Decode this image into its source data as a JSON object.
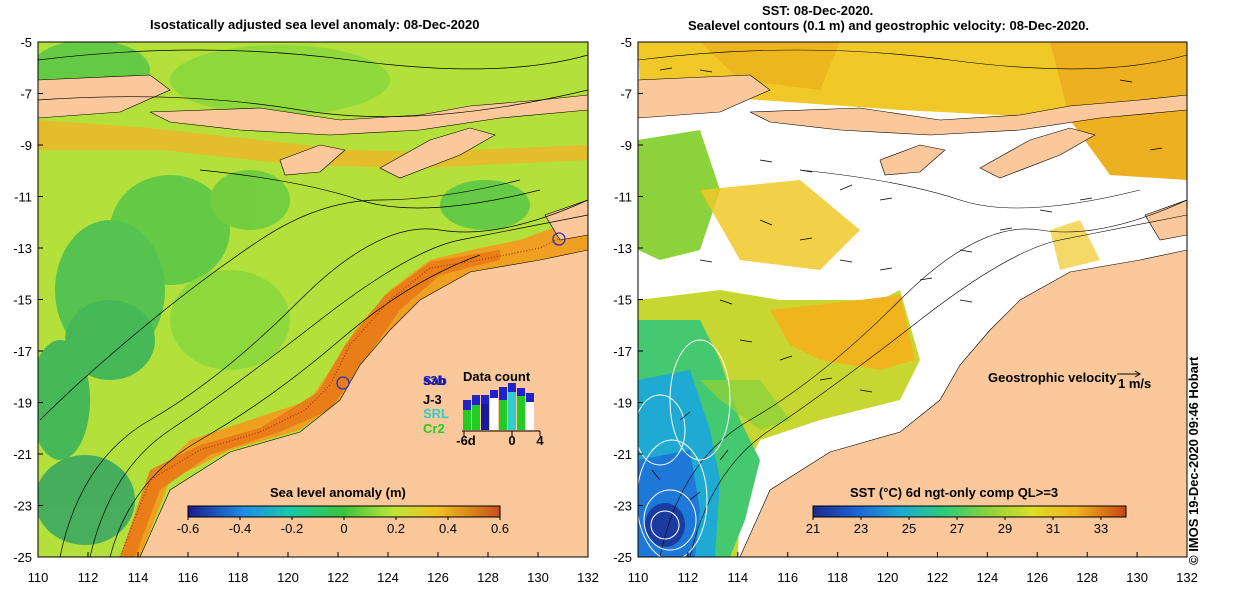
{
  "left_panel": {
    "title": "Isostatically adjusted sea level anomaly: 08-Dec-2020",
    "y_ticks": [
      "-5",
      "-7",
      "-9",
      "-11",
      "-13",
      "-15",
      "-17",
      "-19",
      "-21",
      "-23",
      "-25"
    ],
    "x_ticks": [
      "110",
      "112",
      "114",
      "116",
      "118",
      "120",
      "122",
      "124",
      "126",
      "128",
      "130",
      "132"
    ],
    "colorbar": {
      "label": "Sea level anomaly (m)",
      "ticks": [
        "-0.6",
        "-0.4",
        "-0.2",
        "0",
        "0.2",
        "0.4",
        "0.6"
      ],
      "colors": [
        "#1a1a8c",
        "#1f8fe6",
        "#19c9a5",
        "#3cc43c",
        "#bfe63a",
        "#f0c020",
        "#e88a1a",
        "#c8501a"
      ]
    },
    "data_count": {
      "title": "Data count",
      "legend": [
        {
          "label": "Sab",
          "color": "#2222cc"
        },
        {
          "label": "s3b",
          "color": "#1a1a9a"
        },
        {
          "label": "J-3",
          "color": "#000000"
        },
        {
          "label": "SRL",
          "color": "#33cccc"
        },
        {
          "label": "Cr2",
          "color": "#22cc22"
        }
      ],
      "axis": [
        "-6d",
        "0",
        "4"
      ]
    }
  },
  "right_panel": {
    "title_line1": "SST: 08-Dec-2020.",
    "title_line2": "Sealevel contours (0.1 m) and geostrophic velocity: 08-Dec-2020.",
    "y_ticks": [
      "-5",
      "-7",
      "-9",
      "-11",
      "-13",
      "-15",
      "-17",
      "-19",
      "-21",
      "-23",
      "-25"
    ],
    "x_ticks": [
      "110",
      "112",
      "114",
      "116",
      "118",
      "120",
      "122",
      "124",
      "126",
      "128",
      "130",
      "132"
    ],
    "velocity_label": "Geostrophic velocity",
    "velocity_scale": "1 m/s",
    "colorbar": {
      "label": "SST (°C) 6d ngt-only comp QL>=3",
      "ticks": [
        "21",
        "23",
        "25",
        "27",
        "29",
        "31",
        "33"
      ],
      "colors": [
        "#1a2a8c",
        "#1e64d2",
        "#1eaad2",
        "#2ccc78",
        "#8cd23c",
        "#dede28",
        "#f0b41e",
        "#e87814",
        "#c84614"
      ]
    }
  },
  "credit": "© IMOS 19-Dec-2020 09:46 Hobart",
  "colors": {
    "land": "#fac89a",
    "ocean_green": "#78d23c",
    "cloud": "#ffffff"
  }
}
